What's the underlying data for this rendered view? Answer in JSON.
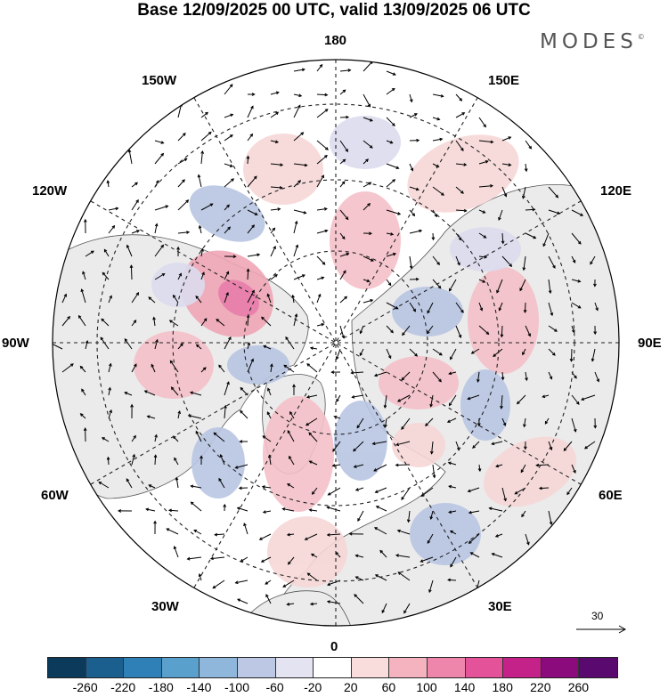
{
  "title": "Base 12/09/2025 00 UTC, valid 13/09/2025 06 UTC",
  "brand": {
    "name": "MODES",
    "mark": "©"
  },
  "longitude_labels": {
    "north": "180",
    "south": "0",
    "west": "90W",
    "east": "90E",
    "nw_upper": "150W",
    "nw_lower": "120W",
    "ne_upper": "150E",
    "ne_lower": "120E",
    "sw_upper": "60W",
    "sw_lower": "30W",
    "se_upper": "60E",
    "se_lower": "30E"
  },
  "reference_vector": {
    "label": "30"
  },
  "colorbar": {
    "colors": [
      "#0b3a5b",
      "#1b5f8e",
      "#2f80b6",
      "#5aa0cc",
      "#8fb6db",
      "#bcc8e4",
      "#e3e3f1",
      "#ffffff",
      "#f9dcdc",
      "#f4b3bf",
      "#ee86ab",
      "#e45399",
      "#c42288",
      "#8b0a7c",
      "#5a0a6e"
    ],
    "ticks": [
      "-260",
      "-220",
      "-180",
      "-140",
      "-100",
      "-60",
      "-20",
      "20",
      "60",
      "100",
      "140",
      "180",
      "220",
      "260"
    ]
  },
  "colors": {
    "land": "#ebebeb",
    "ocean": "#ffffff",
    "positive_light": "#f7d8d8",
    "positive_mid": "#f0a6b5",
    "positive_strong": "#e877a6",
    "negative_light": "#dcdcef",
    "negative_mid": "#b9c6e3",
    "negative_strong": "#8fb0d8"
  }
}
